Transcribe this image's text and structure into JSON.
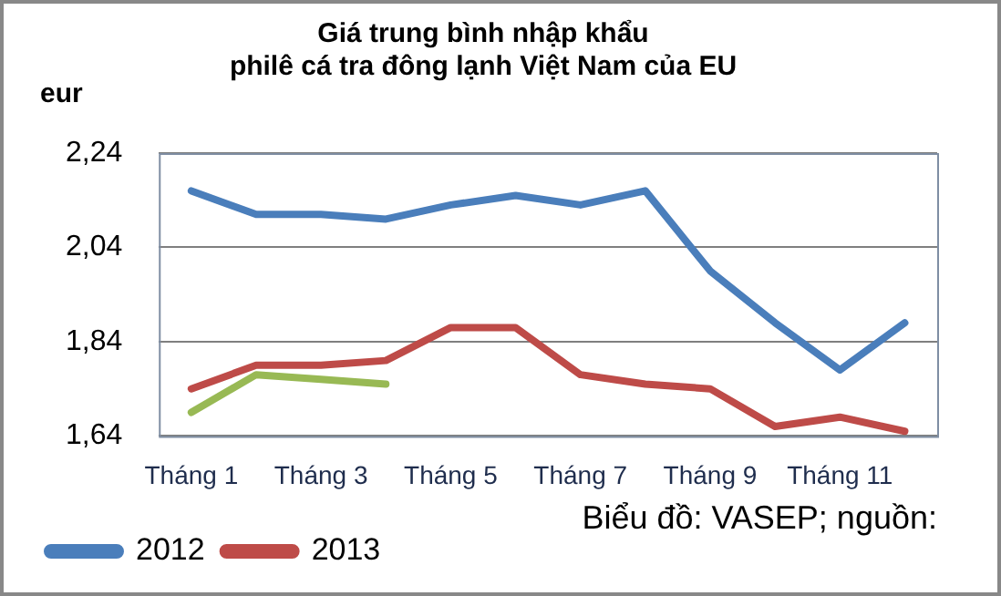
{
  "chart_data": {
    "type": "line",
    "title": "Giá trung bình nhập khẩu\nphilê cá tra đông lạnh Việt Nam của EU",
    "ylabel": "eur",
    "categories": [
      "Tháng 1",
      null,
      "Tháng 3",
      null,
      "Tháng 5",
      null,
      "Tháng 7",
      null,
      "Tháng 9",
      null,
      "Tháng 11",
      null
    ],
    "series": [
      {
        "name": "2012",
        "color": "#4a7ebb",
        "values": [
          2.16,
          2.11,
          2.11,
          2.1,
          2.13,
          2.15,
          2.13,
          2.16,
          1.99,
          1.88,
          1.78,
          1.88
        ]
      },
      {
        "name": "2013",
        "color": "#be4b48",
        "values": [
          1.74,
          1.79,
          1.79,
          1.8,
          1.87,
          1.87,
          1.77,
          1.75,
          1.74,
          1.66,
          1.68,
          1.65
        ]
      },
      {
        "color": "#98b954",
        "values": [
          1.69,
          1.77,
          1.76,
          1.75,
          null,
          null,
          null,
          null,
          null,
          null,
          null,
          null
        ]
      }
    ],
    "ylim": [
      1.64,
      2.24
    ],
    "yticks": [
      {
        "value": 1.64,
        "label": "1,64"
      },
      {
        "value": 1.84,
        "label": "1,84"
      },
      {
        "value": 2.04,
        "label": "2,04"
      },
      {
        "value": 2.24,
        "label": "2,24"
      }
    ],
    "grid": "y",
    "legend": "bottom left",
    "marker": "none",
    "line_style": "solid",
    "annotations": [
      "Biểu đồ: VASEP; nguồn:"
    ]
  }
}
